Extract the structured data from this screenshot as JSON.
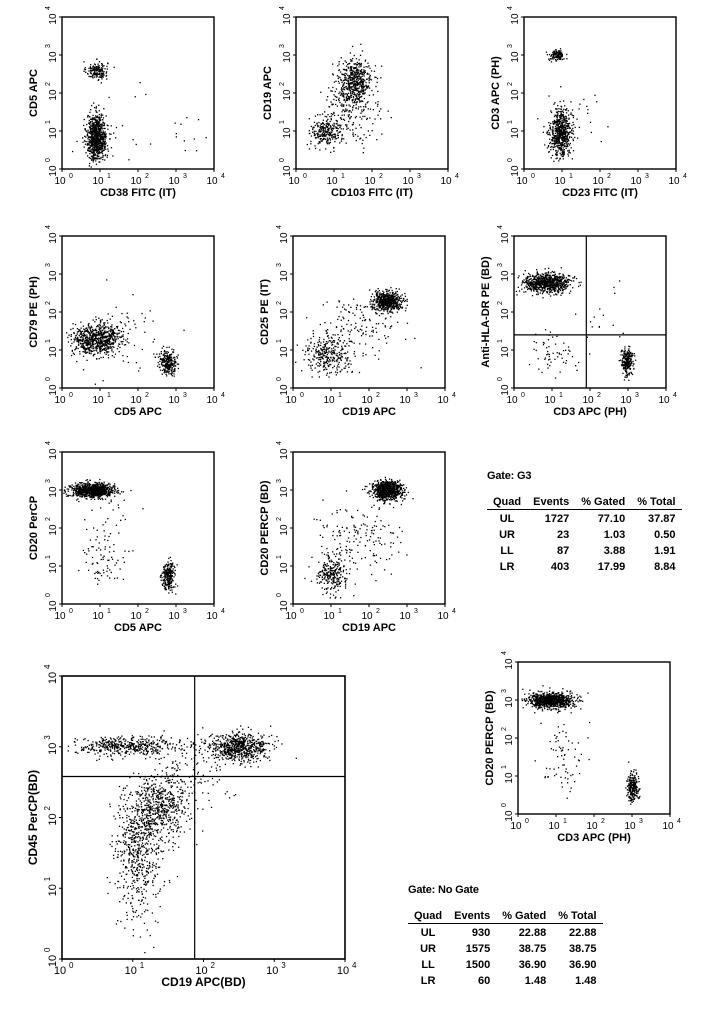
{
  "chart_data": [
    {
      "id": "p1",
      "type": "scatter",
      "xlabel": "CD38 FITC (IT)",
      "ylabel": "CD5 APC",
      "scale": "log",
      "xlim": [
        1,
        10000
      ],
      "ylim": [
        1,
        10000
      ],
      "tick_labels": [
        "10",
        "10",
        "10",
        "10",
        "10"
      ],
      "tick_exponents": [
        "0",
        "1",
        "2",
        "3",
        "4"
      ],
      "quadrant_lines": null,
      "clusters": [
        {
          "x": 8,
          "y": 400,
          "n": 160,
          "sx": 0.14,
          "sy": 0.12
        },
        {
          "x": 8,
          "y": 7,
          "n": 800,
          "sx": 0.13,
          "sy": 0.3
        },
        {
          "x": 30,
          "y": 8,
          "n": 25,
          "sx": 0.6,
          "sy": 0.6
        },
        {
          "x": 1200,
          "y": 9,
          "n": 10,
          "sx": 0.25,
          "sy": 0.2
        }
      ]
    },
    {
      "id": "p2",
      "type": "scatter",
      "xlabel": "CD103 FITC (IT)",
      "ylabel": "CD19 APC",
      "scale": "log",
      "xlim": [
        1,
        10000
      ],
      "ylim": [
        1,
        10000
      ],
      "tick_labels": [
        "10",
        "10",
        "10",
        "10",
        "10"
      ],
      "tick_exponents": [
        "0",
        "1",
        "2",
        "3",
        "4"
      ],
      "quadrant_lines": null,
      "clusters": [
        {
          "x": 6,
          "y": 10,
          "n": 250,
          "sx": 0.2,
          "sy": 0.2
        },
        {
          "x": 35,
          "y": 200,
          "n": 500,
          "sx": 0.22,
          "sy": 0.3
        },
        {
          "x": 18,
          "y": 40,
          "n": 120,
          "sx": 0.25,
          "sy": 0.5
        },
        {
          "x": 60,
          "y": 20,
          "n": 60,
          "sx": 0.4,
          "sy": 0.5
        }
      ]
    },
    {
      "id": "p3",
      "type": "scatter",
      "xlabel": "CD23 FITC (IT)",
      "ylabel": "CD3 APC (PH)",
      "scale": "log",
      "xlim": [
        1,
        10000
      ],
      "ylim": [
        1,
        10000
      ],
      "tick_labels": [
        "10",
        "10",
        "10",
        "10",
        "10"
      ],
      "tick_exponents": [
        "0",
        "1",
        "2",
        "3",
        "4"
      ],
      "quadrant_lines": null,
      "clusters": [
        {
          "x": 7,
          "y": 1000,
          "n": 120,
          "sx": 0.1,
          "sy": 0.07
        },
        {
          "x": 9,
          "y": 9,
          "n": 600,
          "sx": 0.14,
          "sy": 0.3
        },
        {
          "x": 15,
          "y": 30,
          "n": 40,
          "sx": 0.4,
          "sy": 0.5
        }
      ]
    },
    {
      "id": "p4",
      "type": "scatter",
      "xlabel": "CD5 APC",
      "ylabel": "CD79 PE (PH)",
      "scale": "log",
      "xlim": [
        1,
        10000
      ],
      "ylim": [
        1,
        10000
      ],
      "tick_labels": [
        "10",
        "10",
        "10",
        "10",
        "10"
      ],
      "tick_exponents": [
        "0",
        "1",
        "2",
        "3",
        "4"
      ],
      "quadrant_lines": null,
      "clusters": [
        {
          "x": 8,
          "y": 20,
          "n": 700,
          "sx": 0.32,
          "sy": 0.2
        },
        {
          "x": 600,
          "y": 5,
          "n": 250,
          "sx": 0.12,
          "sy": 0.15
        },
        {
          "x": 40,
          "y": 30,
          "n": 60,
          "sx": 0.6,
          "sy": 0.5
        }
      ]
    },
    {
      "id": "p5",
      "type": "scatter",
      "xlabel": "CD19 APC",
      "ylabel": "CD25 PE (IT)",
      "scale": "log",
      "xlim": [
        1,
        10000
      ],
      "ylim": [
        1,
        10000
      ],
      "tick_labels": [
        "10",
        "10",
        "10",
        "10",
        "10"
      ],
      "tick_exponents": [
        "0",
        "1",
        "2",
        "3",
        "4"
      ],
      "quadrant_lines": null,
      "clusters": [
        {
          "x": 300,
          "y": 200,
          "n": 550,
          "sx": 0.2,
          "sy": 0.12
        },
        {
          "x": 8,
          "y": 8,
          "n": 300,
          "sx": 0.3,
          "sy": 0.25
        },
        {
          "x": 60,
          "y": 40,
          "n": 140,
          "sx": 0.5,
          "sy": 0.4
        }
      ]
    },
    {
      "id": "p6",
      "type": "scatter",
      "xlabel": "CD3 APC (PH)",
      "ylabel": "Anti-HLA-DR PE (BD)",
      "scale": "log",
      "xlim": [
        1,
        10000
      ],
      "ylim": [
        1,
        10000
      ],
      "tick_labels": [
        "10",
        "10",
        "10",
        "10",
        "10"
      ],
      "tick_exponents": [
        "0",
        "1",
        "2",
        "3",
        "4"
      ],
      "quadrant_lines": {
        "x": 80,
        "y": 25
      },
      "clusters": [
        {
          "x": 7,
          "y": 600,
          "n": 750,
          "sx": 0.3,
          "sy": 0.13
        },
        {
          "x": 900,
          "y": 5,
          "n": 230,
          "sx": 0.08,
          "sy": 0.18
        },
        {
          "x": 12,
          "y": 8,
          "n": 60,
          "sx": 0.35,
          "sy": 0.3
        },
        {
          "x": 200,
          "y": 100,
          "n": 15,
          "sx": 0.4,
          "sy": 0.5
        }
      ]
    },
    {
      "id": "p7",
      "type": "scatter",
      "xlabel": "CD5 APC",
      "ylabel": "CD20 PerCP",
      "scale": "log",
      "xlim": [
        1,
        10000
      ],
      "ylim": [
        1,
        10000
      ],
      "tick_labels": [
        "10",
        "10",
        "10",
        "10",
        "10"
      ],
      "tick_exponents": [
        "0",
        "1",
        "2",
        "3",
        "4"
      ],
      "quadrant_lines": null,
      "clusters": [
        {
          "x": 6,
          "y": 1000,
          "n": 900,
          "sx": 0.28,
          "sy": 0.09
        },
        {
          "x": 600,
          "y": 6,
          "n": 230,
          "sx": 0.09,
          "sy": 0.18
        },
        {
          "x": 10,
          "y": 12,
          "n": 60,
          "sx": 0.3,
          "sy": 0.3
        },
        {
          "x": 15,
          "y": 150,
          "n": 40,
          "sx": 0.3,
          "sy": 0.5
        }
      ]
    },
    {
      "id": "p8",
      "type": "scatter",
      "xlabel": "CD19 APC",
      "ylabel": "CD20 PERCP (BD)",
      "scale": "log",
      "xlim": [
        1,
        10000
      ],
      "ylim": [
        1,
        10000
      ],
      "tick_labels": [
        "10",
        "10",
        "10",
        "10",
        "10"
      ],
      "tick_exponents": [
        "0",
        "1",
        "2",
        "3",
        "4"
      ],
      "quadrant_lines": null,
      "clusters": [
        {
          "x": 300,
          "y": 1000,
          "n": 750,
          "sx": 0.2,
          "sy": 0.12
        },
        {
          "x": 10,
          "y": 6,
          "n": 250,
          "sx": 0.2,
          "sy": 0.25
        },
        {
          "x": 40,
          "y": 60,
          "n": 160,
          "sx": 0.55,
          "sy": 0.45
        }
      ]
    },
    {
      "id": "p9",
      "type": "scatter",
      "xlabel": "CD19 APC(BD)",
      "ylabel": "CD45 PerCP(BD)",
      "scale": "log",
      "xlim": [
        1,
        10000
      ],
      "ylim": [
        1,
        10000
      ],
      "tick_labels": [
        "10",
        "10",
        "10",
        "10",
        "10"
      ],
      "tick_exponents": [
        "0",
        "1",
        "2",
        "3",
        "4"
      ],
      "quadrant_lines": {
        "x": 75,
        "y": 380
      },
      "clusters": [
        {
          "x": 300,
          "y": 1000,
          "n": 650,
          "sx": 0.22,
          "sy": 0.1
        },
        {
          "x": 8,
          "y": 1050,
          "n": 450,
          "sx": 0.38,
          "sy": 0.07
        },
        {
          "x": 22,
          "y": 140,
          "n": 550,
          "sx": 0.22,
          "sy": 0.22
        },
        {
          "x": 12,
          "y": 40,
          "n": 450,
          "sx": 0.18,
          "sy": 0.35
        },
        {
          "x": 12,
          "y": 8,
          "n": 100,
          "sx": 0.15,
          "sy": 0.35
        },
        {
          "x": 60,
          "y": 400,
          "n": 120,
          "sx": 0.3,
          "sy": 0.25
        }
      ]
    },
    {
      "id": "p10",
      "type": "scatter",
      "xlabel": "CD3 APC (PH)",
      "ylabel": "CD20 PERCP (BD)",
      "scale": "log",
      "xlim": [
        1,
        10000
      ],
      "ylim": [
        1,
        10000
      ],
      "tick_labels": [
        "10",
        "10",
        "10",
        "10",
        "10"
      ],
      "tick_exponents": [
        "0",
        "1",
        "2",
        "3",
        "4"
      ],
      "quadrant_lines": null,
      "clusters": [
        {
          "x": 7,
          "y": 1000,
          "n": 900,
          "sx": 0.3,
          "sy": 0.1
        },
        {
          "x": 1000,
          "y": 5,
          "n": 230,
          "sx": 0.08,
          "sy": 0.2
        },
        {
          "x": 15,
          "y": 30,
          "n": 70,
          "sx": 0.3,
          "sy": 0.45
        }
      ]
    }
  ],
  "tables": [
    {
      "gate_label": "Gate: G3",
      "headers": [
        "Quad",
        "Events",
        "% Gated",
        "% Total"
      ],
      "rows": [
        [
          "UL",
          "1727",
          "77.10",
          "37.87"
        ],
        [
          "UR",
          "23",
          "1.03",
          "0.50"
        ],
        [
          "LL",
          "87",
          "3.88",
          "1.91"
        ],
        [
          "LR",
          "403",
          "17.99",
          "8.84"
        ]
      ]
    },
    {
      "gate_label": "Gate: No Gate",
      "headers": [
        "Quad",
        "Events",
        "% Gated",
        "% Total"
      ],
      "rows": [
        [
          "UL",
          "930",
          "22.88",
          "22.88"
        ],
        [
          "UR",
          "1575",
          "38.75",
          "38.75"
        ],
        [
          "LL",
          "1500",
          "36.90",
          "36.90"
        ],
        [
          "LR",
          "60",
          "1.48",
          "1.48"
        ]
      ]
    }
  ]
}
